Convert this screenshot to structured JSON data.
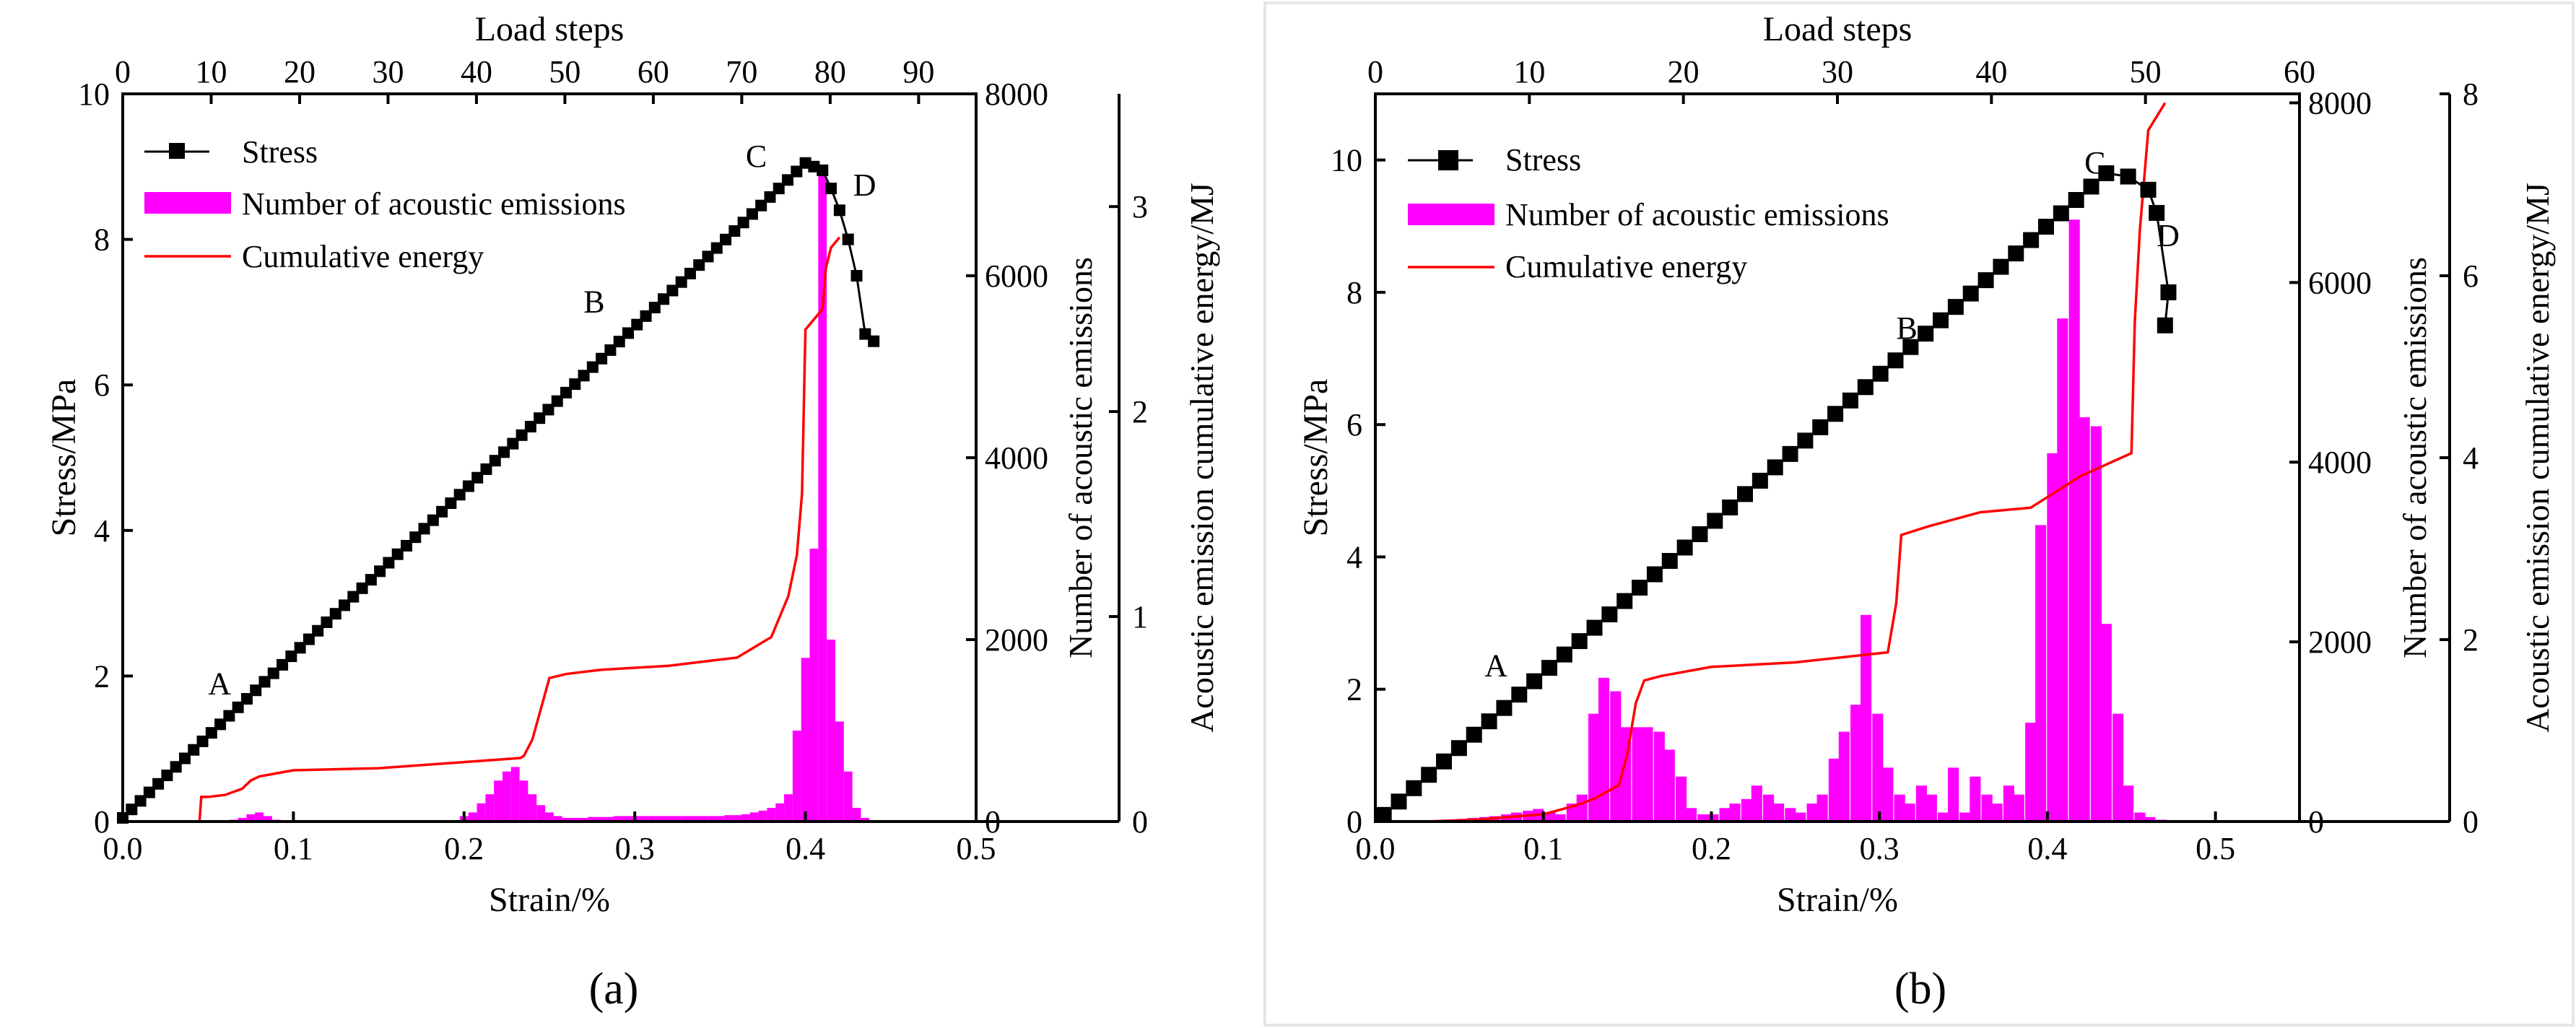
{
  "colors": {
    "stress": "#000000",
    "bars": "#ff00ff",
    "energy": "#ff0000"
  },
  "chart_data": [
    {
      "type": "line",
      "panel_label": "(a)",
      "xlabel": "Strain/%",
      "ylabel": "Stress/MPa",
      "x2label": "Load steps",
      "y2label": "Number of acoustic emissions",
      "y3label": "Acoustic emission cumulative energy/MJ",
      "xlim": [
        0,
        0.5
      ],
      "ylim": [
        0,
        10
      ],
      "x2lim": [
        0,
        96.5
      ],
      "y2lim": [
        0,
        8000
      ],
      "y3lim": [
        0,
        3.55
      ],
      "xticks": [
        "0.0",
        "0.1",
        "0.2",
        "0.3",
        "0.4",
        "0.5"
      ],
      "yticks": [
        "0",
        "2",
        "4",
        "6",
        "8",
        "10"
      ],
      "x2ticks": [
        "0",
        "10",
        "20",
        "30",
        "40",
        "50",
        "60",
        "70",
        "80",
        "90"
      ],
      "y2ticks": [
        "0",
        "2000",
        "4000",
        "6000",
        "8000"
      ],
      "y3ticks": [
        "0",
        "1",
        "2",
        "3"
      ],
      "legend": [
        "Stress",
        "Number of acoustic emissions",
        "Cumulative energy"
      ],
      "annotations": [
        {
          "text": "A",
          "x": 0.05,
          "y": 1.75
        },
        {
          "text": "B",
          "x": 0.27,
          "y": 7.0
        },
        {
          "text": "C",
          "x": 0.365,
          "y": 9.0
        },
        {
          "text": "D",
          "x": 0.428,
          "y": 8.6
        }
      ],
      "stress_linear": {
        "x0": 0.0,
        "x1": 0.4,
        "y0": 0.05,
        "y1": 9.05,
        "n": 78
      },
      "stress_tail": [
        [
          0.405,
          9.0
        ],
        [
          0.41,
          8.95
        ],
        [
          0.415,
          8.7
        ],
        [
          0.42,
          8.4
        ],
        [
          0.425,
          8.0
        ],
        [
          0.43,
          7.5
        ],
        [
          0.435,
          6.7
        ],
        [
          0.44,
          6.6
        ]
      ],
      "bars": {
        "width": 0.005,
        "x": [
          0.065,
          0.07,
          0.075,
          0.08,
          0.085,
          0.09,
          0.095,
          0.2,
          0.205,
          0.21,
          0.215,
          0.22,
          0.225,
          0.23,
          0.235,
          0.24,
          0.245,
          0.25,
          0.255,
          0.26,
          0.265,
          0.27,
          0.275,
          0.28,
          0.285,
          0.29,
          0.295,
          0.3,
          0.305,
          0.31,
          0.315,
          0.32,
          0.325,
          0.33,
          0.335,
          0.34,
          0.345,
          0.35,
          0.355,
          0.36,
          0.365,
          0.37,
          0.375,
          0.38,
          0.385,
          0.39,
          0.395,
          0.4,
          0.405,
          0.41,
          0.415,
          0.42,
          0.425,
          0.43,
          0.435
        ],
        "values": [
          20,
          40,
          80,
          100,
          60,
          20,
          10,
          60,
          100,
          200,
          300,
          450,
          550,
          600,
          450,
          300,
          180,
          100,
          60,
          40,
          40,
          40,
          50,
          50,
          50,
          60,
          60,
          60,
          60,
          60,
          60,
          60,
          60,
          60,
          60,
          60,
          60,
          60,
          70,
          70,
          80,
          100,
          120,
          150,
          200,
          300,
          1000,
          1800,
          3000,
          7200,
          2000,
          1100,
          550,
          150,
          40
        ]
      },
      "energy": [
        [
          0.045,
          0.0
        ],
        [
          0.046,
          0.12
        ],
        [
          0.05,
          0.12
        ],
        [
          0.06,
          0.13
        ],
        [
          0.07,
          0.16
        ],
        [
          0.075,
          0.2
        ],
        [
          0.08,
          0.22
        ],
        [
          0.1,
          0.25
        ],
        [
          0.15,
          0.26
        ],
        [
          0.2,
          0.29
        ],
        [
          0.233,
          0.31
        ],
        [
          0.235,
          0.32
        ],
        [
          0.24,
          0.4
        ],
        [
          0.245,
          0.55
        ],
        [
          0.25,
          0.7
        ],
        [
          0.26,
          0.72
        ],
        [
          0.28,
          0.74
        ],
        [
          0.3,
          0.75
        ],
        [
          0.32,
          0.76
        ],
        [
          0.34,
          0.78
        ],
        [
          0.36,
          0.8
        ],
        [
          0.38,
          0.9
        ],
        [
          0.39,
          1.1
        ],
        [
          0.395,
          1.3
        ],
        [
          0.398,
          1.6
        ],
        [
          0.4,
          2.4
        ],
        [
          0.405,
          2.45
        ],
        [
          0.41,
          2.5
        ],
        [
          0.412,
          2.7
        ],
        [
          0.415,
          2.8
        ],
        [
          0.42,
          2.85
        ]
      ]
    },
    {
      "type": "line",
      "panel_label": "(b)",
      "xlabel": "Strain/%",
      "ylabel": "Stress/MPa",
      "x2label": "Load steps",
      "y2label": "Number of acoustic emissions",
      "y3label": "Acoustic emission cumulative energy/MJ",
      "xlim": [
        0,
        0.55
      ],
      "ylim": [
        0,
        11
      ],
      "y2ylim_note": "",
      "x2lim": [
        0,
        60
      ],
      "y2lim": [
        0,
        8100
      ],
      "y3lim": [
        0,
        8
      ],
      "xticks": [
        "0.0",
        "0.1",
        "0.2",
        "0.3",
        "0.4",
        "0.5"
      ],
      "yticks": [
        "0",
        "2",
        "4",
        "6",
        "8",
        "10"
      ],
      "x2ticks": [
        "0",
        "10",
        "20",
        "30",
        "40",
        "50",
        "60"
      ],
      "y2ticks": [
        "0",
        "2000",
        "4000",
        "6000",
        "8000"
      ],
      "y3ticks": [
        "0",
        "2",
        "4",
        "6",
        "8"
      ],
      "legend": [
        "Stress",
        "Number of acoustic emissions",
        "Cumulative energy"
      ],
      "annotations": [
        {
          "text": "A",
          "x": 0.065,
          "y": 2.2
        },
        {
          "text": "B",
          "x": 0.31,
          "y": 7.3
        },
        {
          "text": "C",
          "x": 0.422,
          "y": 9.8
        },
        {
          "text": "D",
          "x": 0.465,
          "y": 8.7
        }
      ],
      "stress_linear": {
        "x0": 0.005,
        "x1": 0.435,
        "y0": 0.1,
        "y1": 9.8,
        "n": 49
      },
      "stress_tail": [
        [
          0.448,
          9.75
        ],
        [
          0.46,
          9.55
        ],
        [
          0.465,
          9.2
        ],
        [
          0.472,
          8.0
        ],
        [
          0.47,
          7.5
        ]
      ],
      "bars": {
        "width": 0.0065,
        "x": [
          0.045,
          0.052,
          0.058,
          0.065,
          0.071,
          0.078,
          0.084,
          0.091,
          0.097,
          0.104,
          0.11,
          0.117,
          0.123,
          0.13,
          0.136,
          0.143,
          0.149,
          0.156,
          0.162,
          0.169,
          0.175,
          0.182,
          0.188,
          0.195,
          0.201,
          0.208,
          0.214,
          0.221,
          0.227,
          0.234,
          0.24,
          0.247,
          0.253,
          0.26,
          0.266,
          0.273,
          0.279,
          0.286,
          0.292,
          0.299,
          0.305,
          0.312,
          0.318,
          0.325,
          0.331,
          0.338,
          0.344,
          0.351,
          0.357,
          0.364,
          0.37,
          0.377,
          0.383,
          0.39,
          0.396,
          0.403,
          0.409,
          0.416,
          0.422,
          0.429,
          0.435,
          0.442,
          0.448,
          0.455,
          0.461,
          0.468,
          0.474
        ],
        "values": [
          20,
          30,
          40,
          50,
          60,
          80,
          100,
          120,
          140,
          100,
          80,
          200,
          300,
          1200,
          1600,
          1450,
          1050,
          1050,
          1050,
          1000,
          800,
          500,
          150,
          80,
          80,
          150,
          200,
          250,
          400,
          300,
          200,
          150,
          100,
          200,
          300,
          700,
          1000,
          1300,
          2300,
          1200,
          600,
          300,
          200,
          400,
          300,
          100,
          600,
          100,
          500,
          300,
          200,
          400,
          300,
          1100,
          3300,
          4100,
          5600,
          6700,
          4500,
          4400,
          2200,
          1200,
          400,
          100,
          50,
          20,
          10
        ]
      },
      "energy": [
        [
          0.03,
          0.0
        ],
        [
          0.06,
          0.02
        ],
        [
          0.1,
          0.08
        ],
        [
          0.12,
          0.18
        ],
        [
          0.13,
          0.25
        ],
        [
          0.14,
          0.35
        ],
        [
          0.145,
          0.4
        ],
        [
          0.15,
          0.75
        ],
        [
          0.155,
          1.3
        ],
        [
          0.16,
          1.55
        ],
        [
          0.17,
          1.6
        ],
        [
          0.2,
          1.7
        ],
        [
          0.25,
          1.75
        ],
        [
          0.3,
          1.85
        ],
        [
          0.305,
          1.86
        ],
        [
          0.31,
          2.4
        ],
        [
          0.313,
          3.15
        ],
        [
          0.33,
          3.25
        ],
        [
          0.36,
          3.4
        ],
        [
          0.39,
          3.45
        ],
        [
          0.42,
          3.8
        ],
        [
          0.45,
          4.05
        ],
        [
          0.452,
          5.5
        ],
        [
          0.455,
          6.5
        ],
        [
          0.46,
          7.6
        ],
        [
          0.47,
          7.9
        ]
      ]
    }
  ]
}
